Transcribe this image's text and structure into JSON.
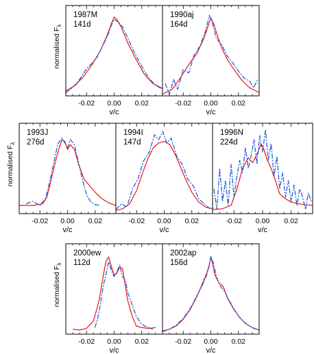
{
  "figure": {
    "ylabel_text": "normalised",
    "ylabel_symbol": "F",
    "ylabel_sub": "λ",
    "xlabel": "v/c"
  },
  "colors": {
    "model": "#ee1111",
    "observed": "#1f5fd6",
    "axis": "#000000"
  },
  "chart_data": [
    {
      "type": "line",
      "name": "1987M",
      "epoch": "141d",
      "xlim": [
        -0.035,
        0.035
      ],
      "ylim": [
        0,
        1.1
      ],
      "xticks": [
        -0.02,
        0.0,
        0.02
      ],
      "xtick_labels": [
        "-0.02",
        "0.00",
        "0.02"
      ],
      "series": [
        {
          "style": "solid",
          "x": [
            -0.035,
            -0.028,
            -0.022,
            -0.016,
            -0.01,
            -0.005,
            -0.002,
            0.0,
            0.002,
            0.005,
            0.01,
            0.016,
            0.022,
            0.028,
            0.035
          ],
          "y": [
            0.06,
            0.13,
            0.24,
            0.38,
            0.55,
            0.74,
            0.88,
            0.96,
            0.93,
            0.84,
            0.64,
            0.44,
            0.26,
            0.15,
            0.09
          ]
        },
        {
          "style": "dashdot",
          "x": [
            -0.035,
            -0.03,
            -0.025,
            -0.02,
            -0.016,
            -0.012,
            -0.008,
            -0.005,
            -0.002,
            0.0,
            0.003,
            0.006,
            0.01,
            0.014,
            0.018,
            0.022,
            0.026,
            0.03,
            0.035
          ],
          "y": [
            0.04,
            0.1,
            0.2,
            0.33,
            0.4,
            0.48,
            0.62,
            0.72,
            0.86,
            0.93,
            0.9,
            0.84,
            0.7,
            0.55,
            0.42,
            0.3,
            0.2,
            0.13,
            0.08
          ]
        }
      ]
    },
    {
      "type": "line",
      "name": "1990aj",
      "epoch": "164d",
      "xlim": [
        -0.035,
        0.035
      ],
      "ylim": [
        0,
        1.1
      ],
      "xticks": [
        -0.02,
        0.0,
        0.02
      ],
      "xtick_labels": [
        "-0.02",
        "0.00",
        "0.02"
      ],
      "series": [
        {
          "style": "solid",
          "x": [
            -0.035,
            -0.028,
            -0.022,
            -0.016,
            -0.01,
            -0.005,
            -0.002,
            0.0,
            0.002,
            0.005,
            0.008,
            0.012,
            0.016,
            0.022,
            0.028,
            0.035
          ],
          "y": [
            0.02,
            0.08,
            0.22,
            0.38,
            0.52,
            0.7,
            0.85,
            0.95,
            0.88,
            0.72,
            0.58,
            0.44,
            0.34,
            0.2,
            0.1,
            0.04
          ]
        },
        {
          "style": "dashdot",
          "x": [
            -0.033,
            -0.03,
            -0.027,
            -0.024,
            -0.02,
            -0.016,
            -0.012,
            -0.008,
            -0.004,
            -0.001,
            0.001,
            0.004,
            0.008,
            0.012,
            0.016,
            0.02,
            0.024,
            0.028,
            0.031,
            0.034
          ],
          "y": [
            0.15,
            0.02,
            0.2,
            0.08,
            0.32,
            0.28,
            0.5,
            0.6,
            0.78,
            0.98,
            0.9,
            0.7,
            0.62,
            0.48,
            0.4,
            0.3,
            0.22,
            0.18,
            0.1,
            0.2
          ]
        }
      ]
    },
    {
      "type": "line",
      "name": "1993J",
      "epoch": "276d",
      "xlim": [
        -0.035,
        0.035
      ],
      "ylim": [
        0,
        1.1
      ],
      "xticks": [
        -0.02,
        0.0,
        0.02
      ],
      "xtick_labels": [
        "-0.02",
        "0.00",
        "0.02"
      ],
      "series": [
        {
          "style": "solid",
          "x": [
            -0.035,
            -0.025,
            -0.018,
            -0.015,
            -0.012,
            -0.009,
            -0.006,
            -0.004,
            -0.002,
            0.0,
            0.002,
            0.005,
            0.008,
            0.012,
            0.016,
            0.02,
            0.025,
            0.03,
            0.035
          ],
          "y": [
            0.1,
            0.1,
            0.12,
            0.2,
            0.4,
            0.62,
            0.8,
            0.9,
            0.88,
            0.78,
            0.84,
            0.78,
            0.6,
            0.42,
            0.34,
            0.26,
            0.18,
            0.13,
            0.1
          ]
        },
        {
          "style": "dashdot",
          "x": [
            -0.03,
            -0.025,
            -0.02,
            -0.016,
            -0.013,
            -0.01,
            -0.007,
            -0.004,
            -0.002,
            0.0,
            0.002,
            0.005,
            0.008,
            0.011,
            0.014,
            0.017,
            0.02,
            0.023
          ],
          "y": [
            0.12,
            0.15,
            0.1,
            0.18,
            0.38,
            0.62,
            0.85,
            0.92,
            0.86,
            0.8,
            0.9,
            0.84,
            0.62,
            0.4,
            0.22,
            0.14,
            0.11,
            0.1
          ]
        }
      ]
    },
    {
      "type": "line",
      "name": "1994I",
      "epoch": "147d",
      "xlim": [
        -0.035,
        0.035
      ],
      "ylim": [
        0,
        1.1
      ],
      "xticks": [
        -0.02,
        0.0,
        0.02
      ],
      "xtick_labels": [
        "-0.02",
        "0.00",
        "0.02"
      ],
      "series": [
        {
          "style": "solid",
          "x": [
            -0.035,
            -0.03,
            -0.025,
            -0.02,
            -0.016,
            -0.012,
            -0.008,
            -0.004,
            0.0,
            0.004,
            0.008,
            0.012,
            0.016,
            0.02,
            0.025,
            0.03,
            0.035
          ],
          "y": [
            0.04,
            0.06,
            0.12,
            0.28,
            0.48,
            0.66,
            0.8,
            0.86,
            0.88,
            0.84,
            0.72,
            0.56,
            0.4,
            0.26,
            0.14,
            0.08,
            0.06
          ]
        },
        {
          "style": "dashdot",
          "x": [
            -0.035,
            -0.031,
            -0.027,
            -0.023,
            -0.019,
            -0.015,
            -0.011,
            -0.007,
            -0.004,
            -0.001,
            0.002,
            0.005,
            0.009,
            0.013,
            0.017,
            0.021,
            0.025,
            0.029,
            0.033
          ],
          "y": [
            0.05,
            0.12,
            0.08,
            0.3,
            0.42,
            0.64,
            0.74,
            0.96,
            0.9,
            1.0,
            0.86,
            0.92,
            0.7,
            0.6,
            0.42,
            0.34,
            0.18,
            0.12,
            0.06
          ]
        }
      ]
    },
    {
      "type": "line",
      "name": "1996N",
      "epoch": "224d",
      "xlim": [
        -0.035,
        0.035
      ],
      "ylim": [
        0,
        1.1
      ],
      "xticks": [
        -0.02,
        0.0,
        0.02
      ],
      "xtick_labels": [
        "-0.02",
        "0.00",
        "0.02"
      ],
      "series": [
        {
          "style": "solid",
          "x": [
            -0.035,
            -0.028,
            -0.022,
            -0.018,
            -0.014,
            -0.01,
            -0.007,
            -0.004,
            -0.001,
            0.001,
            0.003,
            0.006,
            0.009,
            0.012,
            0.016,
            0.02,
            0.025,
            0.03,
            0.035
          ],
          "y": [
            0.05,
            0.06,
            0.1,
            0.3,
            0.55,
            0.68,
            0.62,
            0.72,
            0.85,
            0.78,
            0.66,
            0.55,
            0.4,
            0.24,
            0.18,
            0.14,
            0.12,
            0.11,
            0.1
          ]
        },
        {
          "style": "dashdot",
          "x": [
            -0.034,
            -0.032,
            -0.03,
            -0.028,
            -0.026,
            -0.024,
            -0.022,
            -0.02,
            -0.018,
            -0.016,
            -0.014,
            -0.012,
            -0.01,
            -0.008,
            -0.006,
            -0.004,
            -0.002,
            0.0,
            0.002,
            0.004,
            0.006,
            0.008,
            0.01,
            0.012,
            0.014,
            0.016,
            0.018,
            0.02,
            0.022,
            0.024,
            0.026,
            0.028,
            0.03,
            0.032,
            0.034
          ],
          "y": [
            0.3,
            0.05,
            0.55,
            0.15,
            0.4,
            0.1,
            0.6,
            0.2,
            0.45,
            0.65,
            0.5,
            0.8,
            0.55,
            0.7,
            0.9,
            0.6,
            0.95,
            0.75,
            1.02,
            0.65,
            0.85,
            0.45,
            0.7,
            0.3,
            0.5,
            0.2,
            0.4,
            0.15,
            0.35,
            0.1,
            0.3,
            0.2,
            0.05,
            0.25,
            0.15
          ]
        }
      ]
    },
    {
      "type": "line",
      "name": "2000ew",
      "epoch": "112d",
      "xlim": [
        -0.035,
        0.035
      ],
      "ylim": [
        0,
        1.1
      ],
      "xticks": [
        -0.02,
        0.0,
        0.02
      ],
      "xtick_labels": [
        "-0.02",
        "0.00",
        "0.02"
      ],
      "series": [
        {
          "style": "solid",
          "x": [
            -0.03,
            -0.025,
            -0.02,
            -0.015,
            -0.011,
            -0.008,
            -0.006,
            -0.004,
            -0.002,
            0.0,
            0.002,
            0.004,
            0.006,
            0.008,
            0.01,
            0.013,
            0.016,
            0.02,
            0.025,
            0.03
          ],
          "y": [
            0.06,
            0.05,
            0.07,
            0.16,
            0.4,
            0.7,
            0.88,
            0.94,
            0.82,
            0.72,
            0.74,
            0.82,
            0.8,
            0.6,
            0.4,
            0.22,
            0.1,
            0.08,
            0.07,
            0.08
          ]
        },
        {
          "style": "dashdot",
          "x": [
            -0.014,
            -0.012,
            -0.01,
            -0.008,
            -0.006,
            -0.004,
            -0.002,
            0.0,
            0.002,
            0.004,
            0.006,
            0.008,
            0.01,
            0.013,
            0.016,
            0.019,
            0.022,
            0.025,
            0.028
          ],
          "y": [
            0.08,
            0.18,
            0.36,
            0.58,
            0.72,
            0.88,
            0.78,
            0.7,
            0.76,
            0.84,
            0.7,
            0.66,
            0.5,
            0.36,
            0.22,
            0.14,
            0.1,
            0.08,
            0.06
          ]
        }
      ]
    },
    {
      "type": "line",
      "name": "2002ap",
      "epoch": "156d",
      "xlim": [
        -0.035,
        0.035
      ],
      "ylim": [
        0,
        1.1
      ],
      "xticks": [
        -0.02,
        0.0,
        0.02
      ],
      "xtick_labels": [
        "-0.02",
        "0.00",
        "0.02"
      ],
      "series": [
        {
          "style": "solid",
          "x": [
            -0.035,
            -0.03,
            -0.025,
            -0.02,
            -0.015,
            -0.01,
            -0.006,
            -0.003,
            -0.001,
            0.0,
            0.001,
            0.003,
            0.006,
            0.009,
            0.012,
            0.016,
            0.02,
            0.025,
            0.03,
            0.035
          ],
          "y": [
            0.04,
            0.06,
            0.1,
            0.18,
            0.3,
            0.46,
            0.62,
            0.74,
            0.85,
            0.93,
            0.88,
            0.72,
            0.62,
            0.58,
            0.44,
            0.32,
            0.22,
            0.13,
            0.08,
            0.05
          ]
        },
        {
          "style": "dashdot",
          "x": [
            -0.035,
            -0.03,
            -0.025,
            -0.02,
            -0.015,
            -0.01,
            -0.006,
            -0.003,
            -0.001,
            0.0,
            0.002,
            0.004,
            0.007,
            0.01,
            0.013,
            0.017,
            0.021,
            0.026,
            0.031,
            0.035
          ],
          "y": [
            0.03,
            0.06,
            0.11,
            0.19,
            0.31,
            0.47,
            0.6,
            0.72,
            0.84,
            0.95,
            0.86,
            0.7,
            0.58,
            0.52,
            0.42,
            0.3,
            0.2,
            0.12,
            0.07,
            0.05
          ]
        }
      ]
    }
  ]
}
